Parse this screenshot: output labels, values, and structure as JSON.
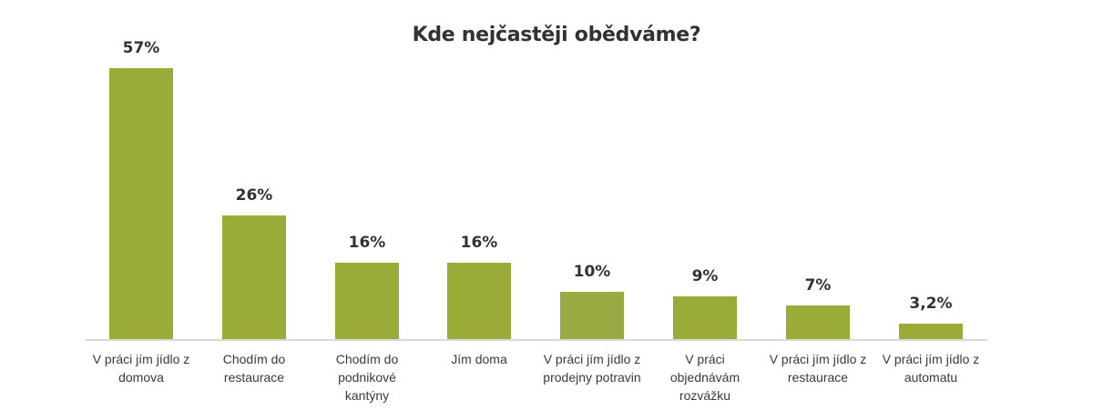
{
  "chart_data": {
    "type": "bar",
    "title": "Kde nejčastěji obědváme?",
    "xlabel": "",
    "ylabel": "",
    "ylim": [
      0,
      60
    ],
    "grid": false,
    "legend": null,
    "categories": [
      "V práci jím jídlo z domova",
      "Chodím do restaurace",
      "Chodím do podnikové kantýny",
      "Jím doma",
      "V práci jím jídlo z prodejny potravin",
      "V práci objednávám rozvážku",
      "V práci jím jídlo z restaurace",
      "V práci jím jídlo z automatu"
    ],
    "values": [
      57,
      26,
      16,
      16,
      10,
      9,
      7,
      3.2
    ],
    "value_labels": [
      "57%",
      "26%",
      "16%",
      "16%",
      "10%",
      "9%",
      "7%",
      "3,2%"
    ],
    "colors": {
      "bar": "#9bab38",
      "bar_alt": "#99aa42",
      "axis": "#d9d9d9",
      "text": "#2f3237"
    }
  },
  "bars": [
    {
      "label_lines": [
        "V práci jím jídlo z",
        "domova"
      ],
      "value_label": "57%"
    },
    {
      "label_lines": [
        "Chodím do",
        "restaurace"
      ],
      "value_label": "26%"
    },
    {
      "label_lines": [
        "Chodím do",
        "podnikové",
        "kantýny"
      ],
      "value_label": "16%"
    },
    {
      "label_lines": [
        "Jím doma"
      ],
      "value_label": "16%"
    },
    {
      "label_lines": [
        "V práci jím jídlo z",
        "prodejny potravin"
      ],
      "value_label": "10%"
    },
    {
      "label_lines": [
        "V práci",
        "objednávám",
        "rozvážku"
      ],
      "value_label": "9%"
    },
    {
      "label_lines": [
        "V práci jím jídlo z",
        "restaurace"
      ],
      "value_label": "7%"
    },
    {
      "label_lines": [
        "V práci jím jídlo z",
        "automatu"
      ],
      "value_label": "3,2%"
    }
  ]
}
